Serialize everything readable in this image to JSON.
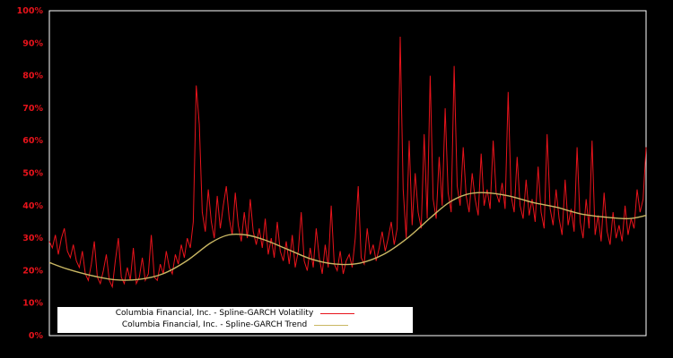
{
  "chart_data": {
    "type": "line",
    "title": "",
    "xlabel": "",
    "ylabel": "",
    "ylim": [
      0,
      100
    ],
    "yticks": [
      0,
      10,
      20,
      30,
      40,
      50,
      60,
      70,
      80,
      90,
      100
    ],
    "ytick_suffix": "%",
    "grid": false,
    "colors": {
      "background": "#000000",
      "plot_border": "#ffffff",
      "tick_label": "#e8131b",
      "legend_bg": "#ffffff",
      "legend_text": "#000000"
    },
    "legend_position": "bottom-inside",
    "series": [
      {
        "name": "Columbia Financial, Inc. - Spline-GARCH Volatility",
        "color": "#e8131b",
        "style": "noisy",
        "values": [
          29,
          27,
          31,
          25,
          30,
          33,
          26,
          24,
          28,
          23,
          21,
          26,
          19,
          17,
          22,
          29,
          18,
          16,
          20,
          25,
          17,
          15,
          23,
          30,
          18,
          16,
          21,
          17,
          27,
          16,
          18,
          24,
          17,
          19,
          31,
          18,
          17,
          22,
          19,
          26,
          21,
          19,
          25,
          22,
          28,
          24,
          30,
          27,
          35,
          77,
          65,
          38,
          32,
          45,
          35,
          30,
          43,
          33,
          40,
          46,
          36,
          31,
          44,
          34,
          29,
          38,
          30,
          42,
          32,
          28,
          33,
          27,
          36,
          25,
          30,
          24,
          35,
          26,
          23,
          29,
          22,
          31,
          21,
          26,
          38,
          23,
          20,
          27,
          21,
          33,
          24,
          19,
          28,
          21,
          40,
          22,
          20,
          26,
          19,
          23,
          25,
          21,
          30,
          46,
          24,
          22,
          33,
          25,
          28,
          23,
          27,
          32,
          26,
          30,
          35,
          28,
          33,
          92,
          45,
          30,
          60,
          34,
          50,
          38,
          33,
          62,
          36,
          80,
          42,
          36,
          55,
          40,
          70,
          44,
          38,
          83,
          46,
          40,
          58,
          43,
          38,
          50,
          42,
          37,
          56,
          40,
          45,
          39,
          60,
          44,
          41,
          47,
          39,
          75,
          43,
          38,
          55,
          40,
          36,
          48,
          37,
          42,
          35,
          52,
          38,
          33,
          62,
          39,
          34,
          45,
          36,
          31,
          48,
          34,
          39,
          32,
          58,
          35,
          30,
          42,
          33,
          60,
          31,
          37,
          29,
          44,
          32,
          28,
          38,
          30,
          34,
          29,
          40,
          31,
          36,
          33,
          45,
          38,
          42,
          58
        ]
      },
      {
        "name": "Columbia Financial, Inc. - Spline-GARCH Trend",
        "color": "#c9b763",
        "style": "smooth",
        "points": [
          [
            0.0,
            22.5
          ],
          [
            0.03,
            20.5
          ],
          [
            0.07,
            18.5
          ],
          [
            0.11,
            17.2
          ],
          [
            0.15,
            17.3
          ],
          [
            0.19,
            19.0
          ],
          [
            0.23,
            23.0
          ],
          [
            0.27,
            28.5
          ],
          [
            0.3,
            31.0
          ],
          [
            0.33,
            31.0
          ],
          [
            0.36,
            29.5
          ],
          [
            0.4,
            26.5
          ],
          [
            0.44,
            23.5
          ],
          [
            0.48,
            22.0
          ],
          [
            0.52,
            22.3
          ],
          [
            0.56,
            25.0
          ],
          [
            0.6,
            30.0
          ],
          [
            0.64,
            36.5
          ],
          [
            0.67,
            41.0
          ],
          [
            0.7,
            43.5
          ],
          [
            0.73,
            44.0
          ],
          [
            0.77,
            43.0
          ],
          [
            0.81,
            41.0
          ],
          [
            0.85,
            39.5
          ],
          [
            0.89,
            37.5
          ],
          [
            0.93,
            36.5
          ],
          [
            0.97,
            36.0
          ],
          [
            1.0,
            37.0
          ]
        ]
      }
    ]
  }
}
